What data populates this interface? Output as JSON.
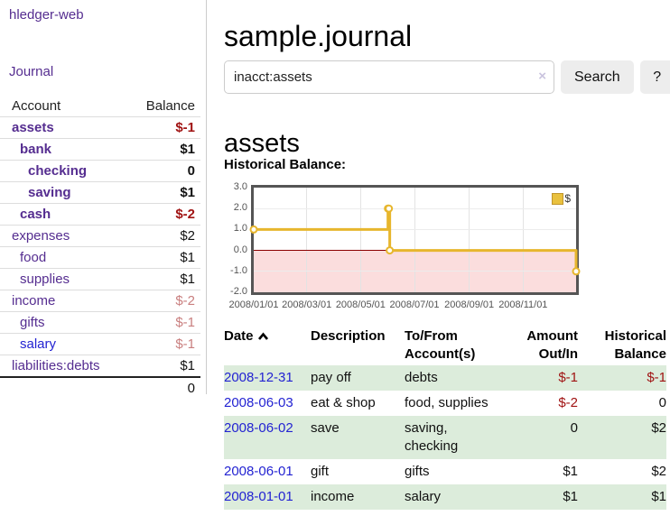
{
  "colors": {
    "purple": "#552d90",
    "blue": "#2323d2",
    "neg_strong": "#a01313",
    "neg_soft": "#c97f7f",
    "text": "#111111",
    "row_green": "#dcecdb",
    "gold": "#e7b62d"
  },
  "sidebar": {
    "app_title": "hledger-web",
    "journal_label": "Journal",
    "accounts_table": {
      "account_header": "Account",
      "balance_header": "Balance",
      "rows": [
        {
          "name": "assets",
          "balance": "$-1",
          "depth": 1,
          "bold": true,
          "name_style": "purple",
          "balance_style": "neg_strong"
        },
        {
          "name": "bank",
          "balance": "$1",
          "depth": 2,
          "bold": true,
          "name_style": "purple",
          "balance_style": "text"
        },
        {
          "name": "checking",
          "balance": "0",
          "depth": 3,
          "bold": true,
          "name_style": "purple",
          "balance_style": "text"
        },
        {
          "name": "saving",
          "balance": "$1",
          "depth": 3,
          "bold": true,
          "name_style": "purple",
          "balance_style": "text"
        },
        {
          "name": "cash",
          "balance": "$-2",
          "depth": 2,
          "bold": true,
          "name_style": "purple",
          "balance_style": "neg_strong"
        },
        {
          "name": "expenses",
          "balance": "$2",
          "depth": 1,
          "bold": false,
          "name_style": "purple",
          "balance_style": "text"
        },
        {
          "name": "food",
          "balance": "$1",
          "depth": 2,
          "bold": false,
          "name_style": "purple",
          "balance_style": "text"
        },
        {
          "name": "supplies",
          "balance": "$1",
          "depth": 2,
          "bold": false,
          "name_style": "purple",
          "balance_style": "text"
        },
        {
          "name": "income",
          "balance": "$-2",
          "depth": 1,
          "bold": false,
          "name_style": "purple",
          "balance_style": "neg_soft"
        },
        {
          "name": "gifts",
          "balance": "$-1",
          "depth": 2,
          "bold": false,
          "name_style": "purple",
          "balance_style": "neg_soft"
        },
        {
          "name": "salary",
          "balance": "$-1",
          "depth": 2,
          "bold": false,
          "name_style": "blue",
          "balance_style": "neg_soft"
        },
        {
          "name": "liabilities:debts",
          "balance": "$1",
          "depth": 1,
          "bold": false,
          "name_style": "purple",
          "balance_style": "text"
        }
      ],
      "total": "0"
    }
  },
  "main": {
    "title": "sample.journal",
    "search": {
      "value": "inacct:assets",
      "clear_icon": "×",
      "button_label": "Search",
      "help_label": "?"
    },
    "account_heading": "assets",
    "chart_title": "Historical Balance:"
  },
  "chart_data": {
    "type": "line",
    "step": true,
    "title": "Historical Balance",
    "series": [
      {
        "name": "$",
        "color": "#e7b62d",
        "points": [
          [
            "2008-01-01",
            1
          ],
          [
            "2008-06-01",
            2
          ],
          [
            "2008-06-02",
            2
          ],
          [
            "2008-06-03",
            0
          ],
          [
            "2008-12-31",
            -1
          ]
        ]
      }
    ],
    "x_range": [
      "2008-01-01",
      "2008-12-31"
    ],
    "ylim": [
      -2,
      3
    ],
    "ytick_labels": [
      "3.0",
      "2.0",
      "1.0",
      "0.0",
      "-1.0",
      "-2.0"
    ],
    "xticks": [
      {
        "date": "2008-01-01",
        "label": "2008/01/01"
      },
      {
        "date": "2008-03-01",
        "label": "2008/03/01"
      },
      {
        "date": "2008-05-01",
        "label": "2008/05/01"
      },
      {
        "date": "2008-07-01",
        "label": "2008/07/01"
      },
      {
        "date": "2008-09-01",
        "label": "2008/09/01"
      },
      {
        "date": "2008-11-01",
        "label": "2008/11/01"
      }
    ],
    "legend": {
      "label": "$",
      "position": "top-right"
    },
    "negative_fill": "#fbdddd",
    "zero_line_color": "#8b0000",
    "grid": true
  },
  "transactions": {
    "headers": {
      "date": "Date",
      "description": "Description",
      "tofrom": "To/From Account(s)",
      "amount": "Amount Out/In",
      "balance": "Historical Balance"
    },
    "sort": "date-ascending",
    "rows": [
      {
        "date": "2008-12-31",
        "description": "pay off",
        "accounts": [
          "debts"
        ],
        "amount": "$-1",
        "balance": "$-1"
      },
      {
        "date": "2008-06-03",
        "description": "eat & shop",
        "accounts": [
          "food, supplies"
        ],
        "amount": "$-2",
        "balance": "0"
      },
      {
        "date": "2008-06-02",
        "description": "save",
        "accounts": [
          "saving,",
          "checking"
        ],
        "amount": "0",
        "balance": "$2"
      },
      {
        "date": "2008-06-01",
        "description": "gift",
        "accounts": [
          "gifts"
        ],
        "amount": "$1",
        "balance": "$2"
      },
      {
        "date": "2008-01-01",
        "description": "income",
        "accounts": [
          "salary"
        ],
        "amount": "$1",
        "balance": "$1"
      }
    ]
  }
}
